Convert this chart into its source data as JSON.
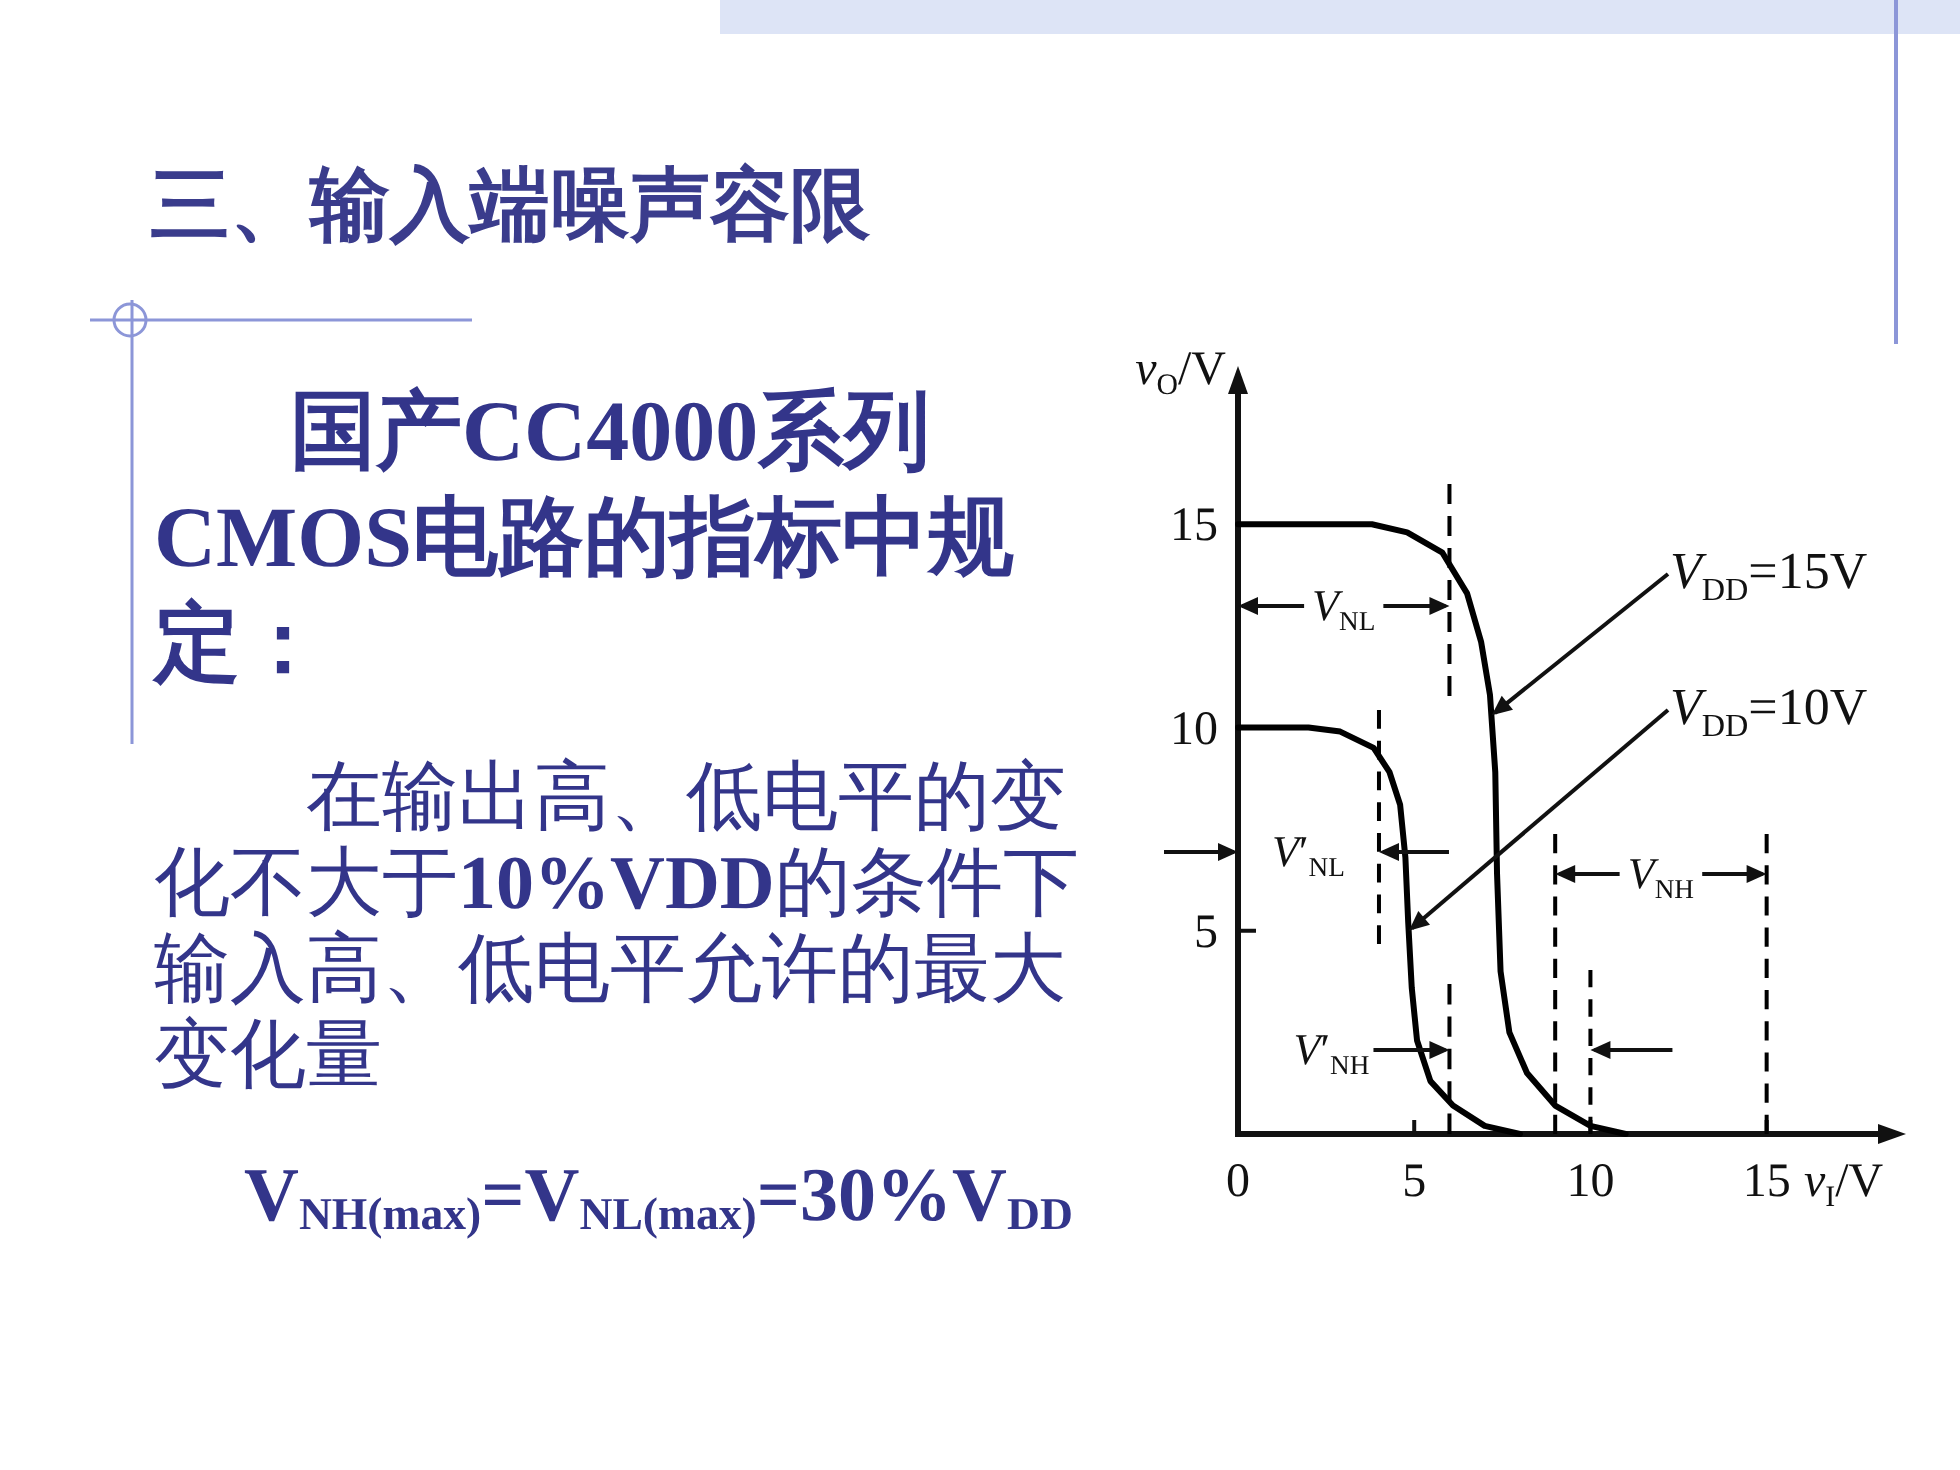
{
  "chart_data": {
    "type": "line",
    "title": "三、输入端噪声容限",
    "xlabel": "*v*$_{I}$/V",
    "ylabel": "*v*$_{O}$/V",
    "xlim": [
      0,
      18.5
    ],
    "ylim": [
      0,
      18.5
    ],
    "xticks": [
      0,
      5,
      10,
      15
    ],
    "yticks": [
      5,
      10,
      15
    ],
    "series": [
      {
        "color": "#000000",
        "x": [
          0,
          2,
          3.8,
          4.8,
          5.8,
          6.5,
          6.9,
          7.15,
          7.3,
          7.35,
          7.45,
          7.7,
          8.2,
          9,
          10,
          11
        ],
        "values": [
          15,
          15,
          15,
          14.8,
          14.3,
          13.3,
          12.1,
          10.8,
          8.9,
          6.4,
          4,
          2.5,
          1.5,
          0.7,
          0.2,
          0
        ]
      },
      {
        "color": "#000000",
        "x": [
          0,
          2,
          2.9,
          3.85,
          4.3,
          4.6,
          4.75,
          4.83,
          4.93,
          5.08,
          5.46,
          6.1,
          7,
          8
        ],
        "values": [
          10,
          10,
          9.9,
          9.5,
          8.9,
          8.1,
          6.8,
          5.2,
          3.6,
          2.3,
          1.3,
          0.7,
          0.2,
          0
        ]
      }
    ],
    "ref_lines": [
      {
        "axis": "x",
        "value": 6,
        "color": "#000000",
        "line_style": "dashed"
      },
      {
        "axis": "x",
        "value": 4,
        "color": "#000000",
        "line_style": "dashed"
      },
      {
        "axis": "x",
        "value": 9,
        "color": "#000000",
        "line_style": "dashed"
      },
      {
        "axis": "x",
        "value": 15,
        "color": "#000000",
        "line_style": "dashed"
      },
      {
        "axis": "x",
        "value": 10,
        "color": "#000000",
        "line_style": "dashed"
      }
    ],
    "annotations": [
      "国产CC4000系列CMOS电路的指标中规定：",
      "在输出高、低电平的变化不大于**10%VDD**的条件下输入高、低电平允许的最大变化量",
      "V$_{NH(max)}$=V$_{NL(max)}$=30%V$_{DD}$",
      "*V*$_{NL}$",
      "*V*′$_{NL}$",
      "*V*$_{NH}$",
      "*V*′$_{NH}$",
      {
        "text": "*V*$_{DD}$=15V",
        "x": 7.2,
        "y": 10.3
      },
      {
        "text": "*V*$_{DD}$=10V",
        "x": 4.85,
        "y": 5
      }
    ]
  }
}
